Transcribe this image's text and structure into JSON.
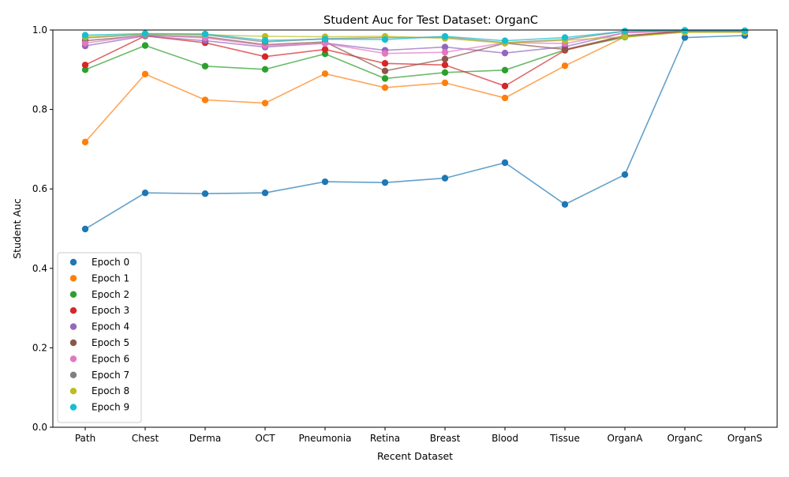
{
  "chart_data": {
    "type": "line",
    "title": "Student Auc for Test Dataset: OrganC",
    "xlabel": "Recent Dataset",
    "ylabel": "Student Auc",
    "ylim": [
      0,
      1.0
    ],
    "yticks": [
      "0.0",
      "0.2",
      "0.4",
      "0.6",
      "0.8",
      "1.0"
    ],
    "categories": [
      "Path",
      "Chest",
      "Derma",
      "OCT",
      "Pneumonia",
      "Retina",
      "Breast",
      "Blood",
      "Tissue",
      "OrganA",
      "OrganC",
      "OrganS"
    ],
    "legend_position": "lower-left",
    "grid": false,
    "series": [
      {
        "name": "Epoch 0",
        "color": "#1f77b4",
        "values": [
          0.499,
          0.59,
          0.588,
          0.59,
          0.618,
          0.616,
          0.627,
          0.666,
          0.561,
          0.636,
          0.981,
          0.986
        ]
      },
      {
        "name": "Epoch 1",
        "color": "#ff7f0e",
        "values": [
          0.718,
          0.889,
          0.824,
          0.816,
          0.89,
          0.855,
          0.867,
          0.829,
          0.91,
          0.983,
          0.997,
          0.996
        ]
      },
      {
        "name": "Epoch 2",
        "color": "#2ca02c",
        "values": [
          0.9,
          0.961,
          0.909,
          0.901,
          0.94,
          0.878,
          0.893,
          0.899,
          0.95,
          0.982,
          0.996,
          0.996
        ]
      },
      {
        "name": "Epoch 3",
        "color": "#d62728",
        "values": [
          0.912,
          0.985,
          0.968,
          0.933,
          0.951,
          0.916,
          0.912,
          0.859,
          0.949,
          0.985,
          0.997,
          0.997
        ]
      },
      {
        "name": "Epoch 4",
        "color": "#9467bd",
        "values": [
          0.96,
          0.985,
          0.973,
          0.957,
          0.967,
          0.949,
          0.957,
          0.942,
          0.958,
          0.993,
          0.998,
          0.997
        ]
      },
      {
        "name": "Epoch 5",
        "color": "#8c564b",
        "values": [
          0.973,
          0.986,
          0.983,
          0.963,
          0.97,
          0.897,
          0.927,
          0.967,
          0.951,
          0.986,
          0.997,
          0.997
        ]
      },
      {
        "name": "Epoch 6",
        "color": "#e377c2",
        "values": [
          0.967,
          0.987,
          0.98,
          0.961,
          0.966,
          0.941,
          0.944,
          0.968,
          0.966,
          0.993,
          0.998,
          0.997
        ]
      },
      {
        "name": "Epoch 7",
        "color": "#7f7f7f",
        "values": [
          0.98,
          0.989,
          0.988,
          0.97,
          0.978,
          0.981,
          0.982,
          0.968,
          0.976,
          0.997,
          0.999,
          0.998
        ]
      },
      {
        "name": "Epoch 8",
        "color": "#bcbd22",
        "values": [
          0.983,
          0.99,
          0.988,
          0.984,
          0.983,
          0.984,
          0.979,
          0.967,
          0.974,
          0.983,
          0.994,
          0.994
        ]
      },
      {
        "name": "Epoch 9",
        "color": "#17becf",
        "values": [
          0.987,
          0.991,
          0.99,
          0.974,
          0.977,
          0.976,
          0.984,
          0.973,
          0.981,
          0.997,
          0.999,
          0.998
        ]
      }
    ]
  }
}
